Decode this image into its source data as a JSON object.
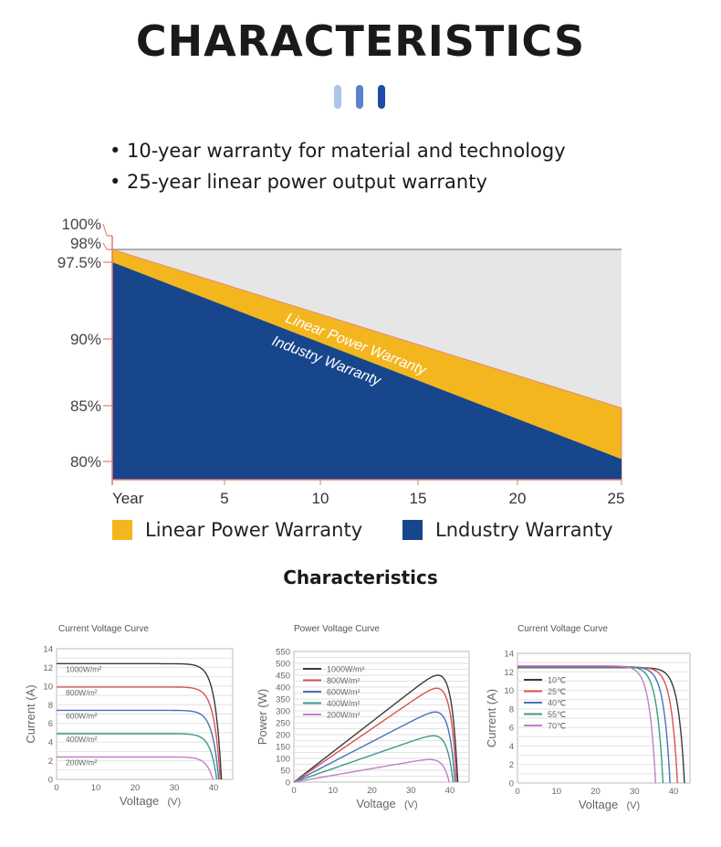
{
  "header": {
    "title": "CHARACTERISTICS",
    "accent_colors": [
      "#aec4ea",
      "#5b82cf",
      "#1e4ca8"
    ]
  },
  "bullets": [
    "• 10-year warranty for material and technology",
    "• 25-year linear power output warranty"
  ],
  "subtitle": "Characteristics",
  "chart_data": [
    {
      "type": "area",
      "title": "",
      "x_ticks": [
        "Year",
        "5",
        "10",
        "15",
        "20",
        "25"
      ],
      "y_ticks": [
        "100%",
        "98%",
        "97.5%",
        "90%",
        "85%",
        "80%"
      ],
      "series": [
        {
          "name": "Linear Power Warranty",
          "label": "Linear Power Warranty",
          "color": "#f3b61f",
          "x": [
            1,
            25
          ],
          "y": [
            98,
            84.8
          ]
        },
        {
          "name": "Lndustry Warranty",
          "label": "Industry Warranty",
          "color": "#17468c",
          "x": [
            1,
            25
          ],
          "y": [
            97.5,
            80.2
          ]
        }
      ],
      "legend": [
        "Linear Power Warranty",
        "Lndustry Warranty"
      ],
      "legend_placement": "bottom",
      "background": "#e6e6e6"
    },
    {
      "type": "line",
      "title": "Current Voltage Curve",
      "xlabel": "Voltage",
      "xunit": "(V)",
      "ylabel": "Current",
      "yunit": "(A)",
      "xlim": [
        0,
        45
      ],
      "ylim": [
        0,
        14
      ],
      "x_ticks": [
        0,
        10,
        20,
        30,
        40
      ],
      "y_ticks": [
        0,
        2,
        4,
        6,
        8,
        10,
        12,
        14
      ],
      "series": [
        {
          "name": "1000W/m²",
          "color": "#3a3a3a",
          "isc": 12.4,
          "voc": 42.0
        },
        {
          "name": "800W/m²",
          "color": "#d9534f",
          "isc": 9.9,
          "voc": 41.7
        },
        {
          "name": "600W/m²",
          "color": "#4a72b8",
          "isc": 7.4,
          "voc": 41.3
        },
        {
          "name": "400W/m²",
          "color": "#3a9a8a",
          "isc": 4.9,
          "voc": 40.8
        },
        {
          "name": "200W/m²",
          "color": "#c27fc9",
          "isc": 2.4,
          "voc": 39.8
        }
      ]
    },
    {
      "type": "line",
      "title": "Power Voltage Curve",
      "xlabel": "Voltage",
      "xunit": "(V)",
      "ylabel": "Power",
      "yunit": "(W)",
      "xlim": [
        0,
        45
      ],
      "ylim": [
        0,
        550
      ],
      "x_ticks": [
        0,
        10,
        20,
        30,
        40
      ],
      "y_ticks": [
        0,
        50,
        100,
        150,
        200,
        250,
        300,
        350,
        400,
        450,
        500,
        550
      ],
      "series": [
        {
          "name": "1000W/m²",
          "color": "#3a3a3a",
          "pmax": 450,
          "voc": 42.0
        },
        {
          "name": "800W/m²",
          "color": "#d9534f",
          "pmax": 395,
          "voc": 41.7
        },
        {
          "name": "600W/m²",
          "color": "#4a72b8",
          "pmax": 295,
          "voc": 41.3
        },
        {
          "name": "400W/m²",
          "color": "#3a9a8a",
          "pmax": 195,
          "voc": 40.8
        },
        {
          "name": "200W/m²",
          "color": "#c27fc9",
          "pmax": 95,
          "voc": 39.8
        }
      ]
    },
    {
      "type": "line",
      "title": "Current Voltage Curve",
      "xlabel": "Voltage",
      "xunit": "(V)",
      "ylabel": "Current",
      "yunit": "(A)",
      "xlim": [
        0,
        44
      ],
      "ylim": [
        0,
        14
      ],
      "x_ticks": [
        0,
        10,
        20,
        30,
        40
      ],
      "y_ticks": [
        0,
        2,
        4,
        6,
        8,
        10,
        12,
        14
      ],
      "series": [
        {
          "name": "10℃",
          "color": "#3a3a3a",
          "isc": 12.45,
          "voc": 42.8
        },
        {
          "name": "25℃",
          "color": "#d9534f",
          "isc": 12.5,
          "voc": 41.0
        },
        {
          "name": "40℃",
          "color": "#4a72b8",
          "isc": 12.55,
          "voc": 39.1
        },
        {
          "name": "55℃",
          "color": "#3a9a8a",
          "isc": 12.6,
          "voc": 37.3
        },
        {
          "name": "70℃",
          "color": "#c27fc9",
          "isc": 12.65,
          "voc": 35.4
        }
      ]
    }
  ]
}
